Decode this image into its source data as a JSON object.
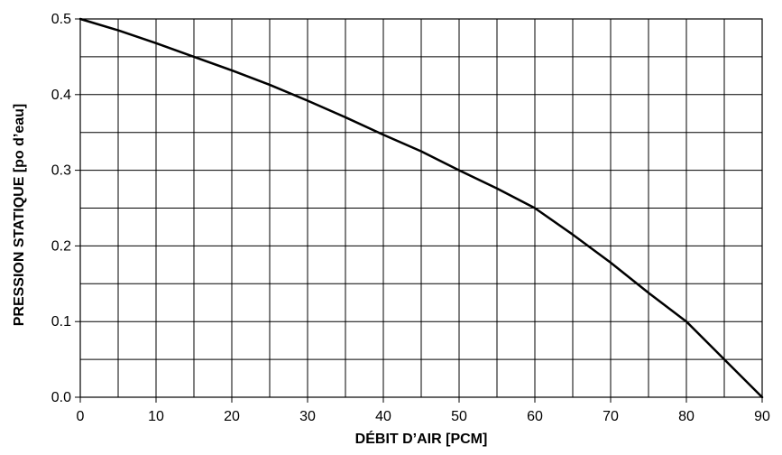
{
  "chart_data": {
    "type": "line",
    "title": "",
    "xlabel": "DÉBIT D’AIR [PCM]",
    "ylabel": "PRESSION STATIQUE [po d’eau]",
    "xlim": [
      0,
      90
    ],
    "ylim": [
      0,
      0.5
    ],
    "x_ticks": [
      "0",
      "10",
      "20",
      "30",
      "40",
      "50",
      "60",
      "70",
      "80",
      "90"
    ],
    "y_ticks": [
      "0.0",
      "0.1",
      "0.2",
      "0.3",
      "0.4",
      "0.5"
    ],
    "x_grid_step": 5,
    "y_grid_step": 0.05,
    "grid": true,
    "series": [
      {
        "x": [
          0,
          5,
          10,
          15,
          20,
          25,
          30,
          35,
          40,
          45,
          50,
          55,
          60,
          65,
          70,
          75,
          80,
          85,
          90
        ],
        "y": [
          0.5,
          0.485,
          0.468,
          0.45,
          0.432,
          0.413,
          0.392,
          0.37,
          0.347,
          0.325,
          0.3,
          0.276,
          0.25,
          0.215,
          0.178,
          0.138,
          0.1,
          0.05,
          0.0
        ],
        "color": "#000000"
      }
    ]
  }
}
